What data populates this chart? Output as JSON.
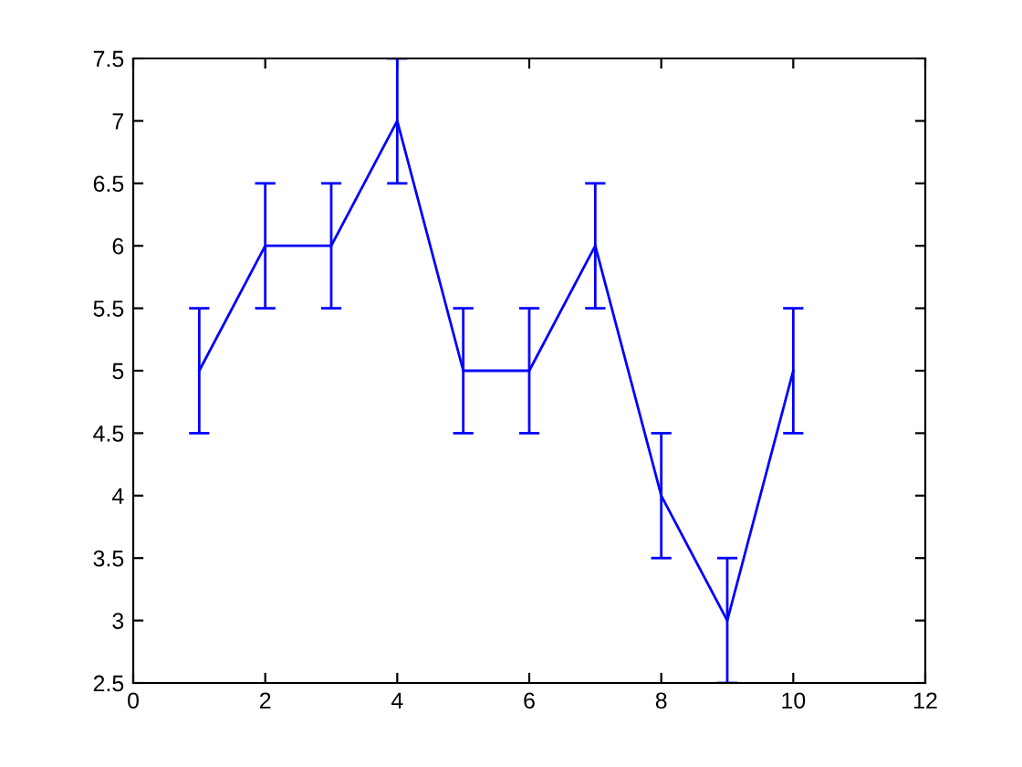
{
  "chart_data": {
    "type": "line",
    "x": [
      1,
      2,
      3,
      4,
      5,
      6,
      7,
      8,
      9,
      10
    ],
    "series": [
      {
        "color": "#0000ff",
        "values": [
          5,
          6,
          6,
          7,
          5,
          5,
          6,
          4,
          3,
          5
        ],
        "errors": [
          0.5,
          0.5,
          0.5,
          0.5,
          0.5,
          0.5,
          0.5,
          0.5,
          0.5,
          0.5
        ]
      }
    ],
    "xlim": [
      0,
      12
    ],
    "xticks": [
      0,
      2,
      4,
      6,
      8,
      10,
      12
    ],
    "ylim": [
      2.5,
      7.5
    ],
    "yticks": [
      2.5,
      3,
      3.5,
      4,
      4.5,
      5,
      5.5,
      6,
      6.5,
      7,
      7.5
    ],
    "grid": false,
    "marker": "none",
    "line_style": "solid"
  }
}
